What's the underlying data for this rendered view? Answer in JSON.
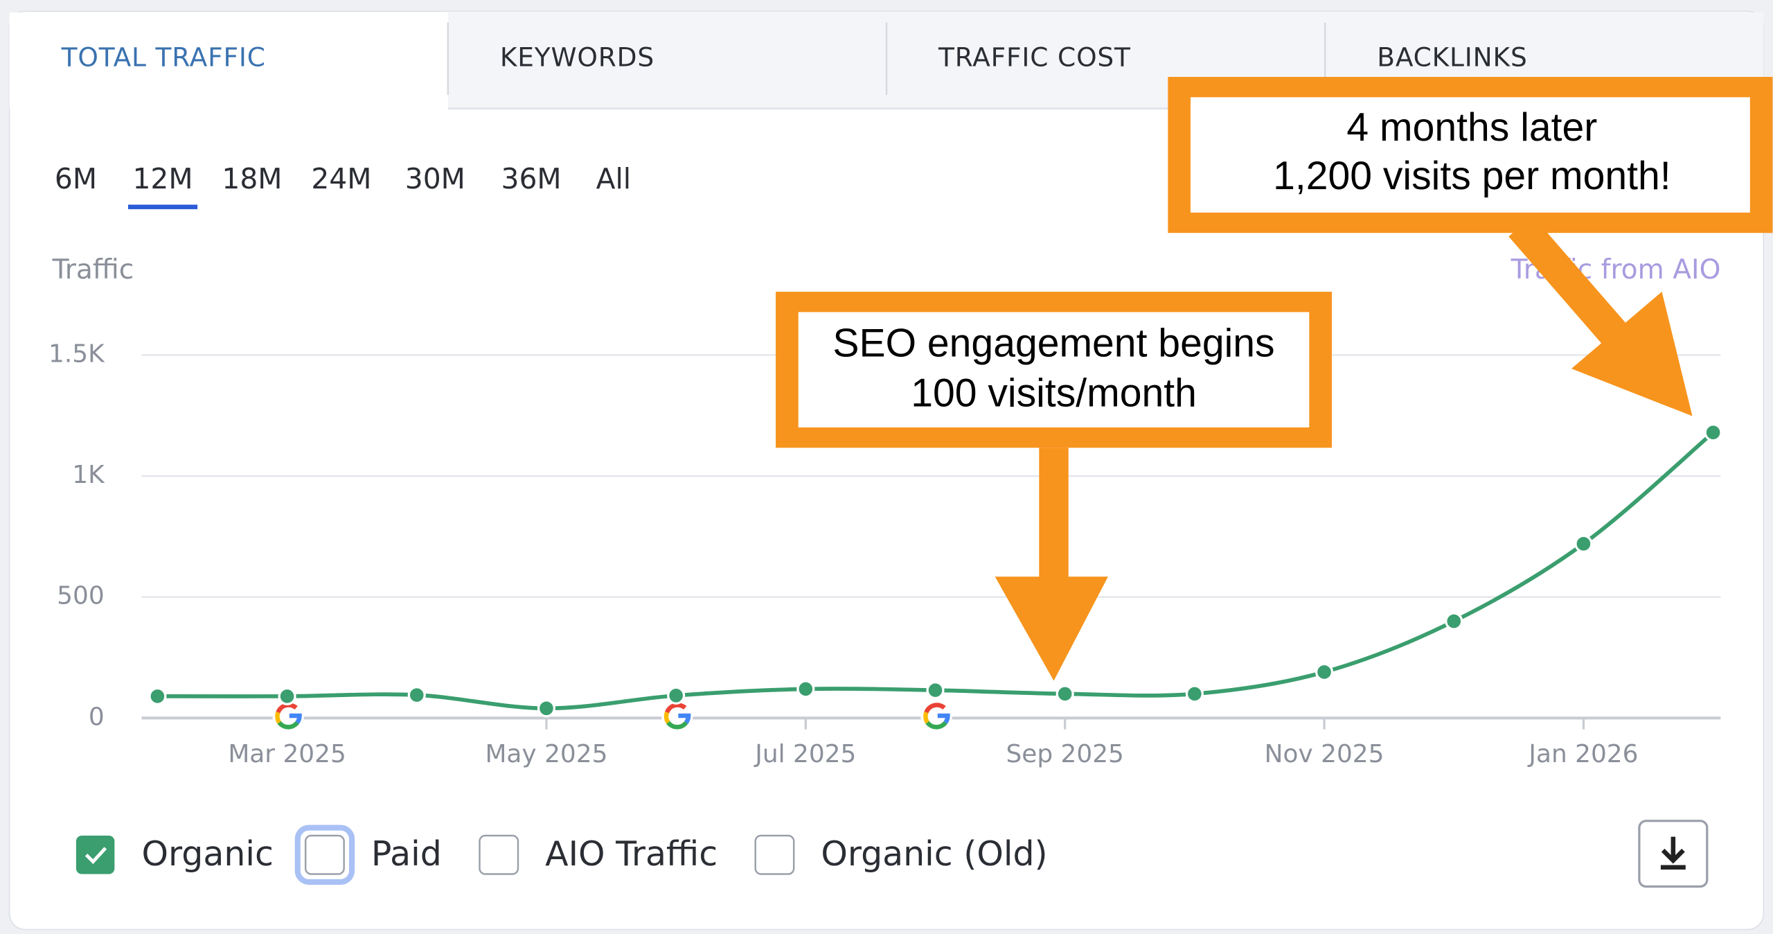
{
  "tabs": [
    "TOTAL TRAFFIC",
    "KEYWORDS",
    "TRAFFIC COST",
    "BACKLINKS"
  ],
  "active_tab": 0,
  "periods": [
    "6M",
    "12M",
    "18M",
    "24M",
    "30M",
    "36M",
    "All"
  ],
  "active_period": 1,
  "legend": [
    {
      "name": "Organic",
      "checked": true,
      "focused": false
    },
    {
      "name": "Paid",
      "checked": false,
      "focused": true
    },
    {
      "name": "AIO Traffic",
      "checked": false,
      "focused": false
    },
    {
      "name": "Organic (Old)",
      "checked": false,
      "focused": false
    }
  ],
  "chart_data": {
    "type": "line",
    "y_label": "Traffic",
    "right_label": "Traffic from AIO",
    "categories": [
      null,
      "Mar 2025",
      null,
      "May 2025",
      null,
      "Jul 2025",
      null,
      "Sep 2025",
      null,
      "Nov 2025",
      null,
      "Jan 2026",
      null
    ],
    "series": [
      {
        "name": "Organic",
        "color": "#3a9e6e",
        "values": [
          90,
          90,
          95,
          40,
          93,
          120,
          115,
          100,
          100,
          190,
          400,
          720,
          1180
        ]
      }
    ],
    "ylim": [
      0,
      1500
    ],
    "yticks": [
      0,
      500,
      {
        "value": 1000,
        "label": "1K"
      },
      {
        "value": 1500,
        "label": "1.5K"
      }
    ],
    "grid": true,
    "annotations": [
      [
        "SEO engagement begins",
        "100 visits/month"
      ],
      [
        "4 months later",
        "1,200 visits per month!"
      ]
    ]
  }
}
